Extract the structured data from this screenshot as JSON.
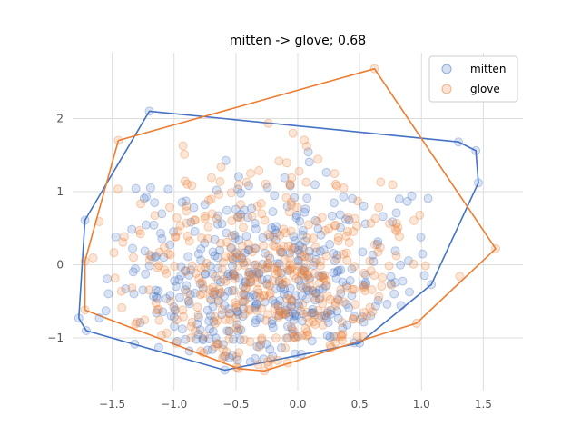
{
  "chart_data": {
    "type": "scatter",
    "title": "mitten -> glove; 0.68",
    "xlabel": "",
    "ylabel": "",
    "xlim": [
      -1.82,
      1.82
    ],
    "ylim": [
      -1.72,
      2.9
    ],
    "xticks": [
      -1.5,
      -1.0,
      -0.5,
      0.0,
      0.5,
      1.0,
      1.5
    ],
    "xtick_labels": [
      "−1.5",
      "−1.0",
      "−0.5",
      "0.0",
      "0.5",
      "1.0",
      "1.5"
    ],
    "yticks": [
      -1,
      0,
      1,
      2
    ],
    "ytick_labels": [
      "−1",
      "0",
      "1",
      "2"
    ],
    "grid": true,
    "legend": "top-right",
    "series": [
      {
        "name": "mitten",
        "color": "#4472c4",
        "hull": [
          [
            -1.77,
            -0.73
          ],
          [
            -1.71,
            -0.9
          ],
          [
            -0.59,
            -1.44
          ],
          [
            0.5,
            -1.07
          ],
          [
            1.08,
            -0.27
          ],
          [
            1.46,
            1.12
          ],
          [
            1.44,
            1.56
          ],
          [
            1.3,
            1.68
          ],
          [
            -1.2,
            2.1
          ],
          [
            -1.72,
            0.61
          ],
          [
            -1.77,
            -0.73
          ]
        ],
        "seed": 7,
        "n": 420,
        "spread": {
          "mx": -0.25,
          "sx": 0.62,
          "my": -0.35,
          "sy": 0.75
        }
      },
      {
        "name": "glove",
        "color": "#ed7d31",
        "hull": [
          [
            -1.72,
            -0.62
          ],
          [
            -1.72,
            0.05
          ],
          [
            -1.45,
            1.7
          ],
          [
            0.62,
            2.68
          ],
          [
            1.6,
            0.22
          ],
          [
            0.96,
            -0.8
          ],
          [
            -0.27,
            -1.45
          ],
          [
            -0.48,
            -1.42
          ],
          [
            -1.72,
            -0.62
          ]
        ],
        "seed": 13,
        "n": 430,
        "spread": {
          "mx": -0.22,
          "sx": 0.6,
          "my": -0.25,
          "sy": 0.8
        }
      }
    ]
  }
}
